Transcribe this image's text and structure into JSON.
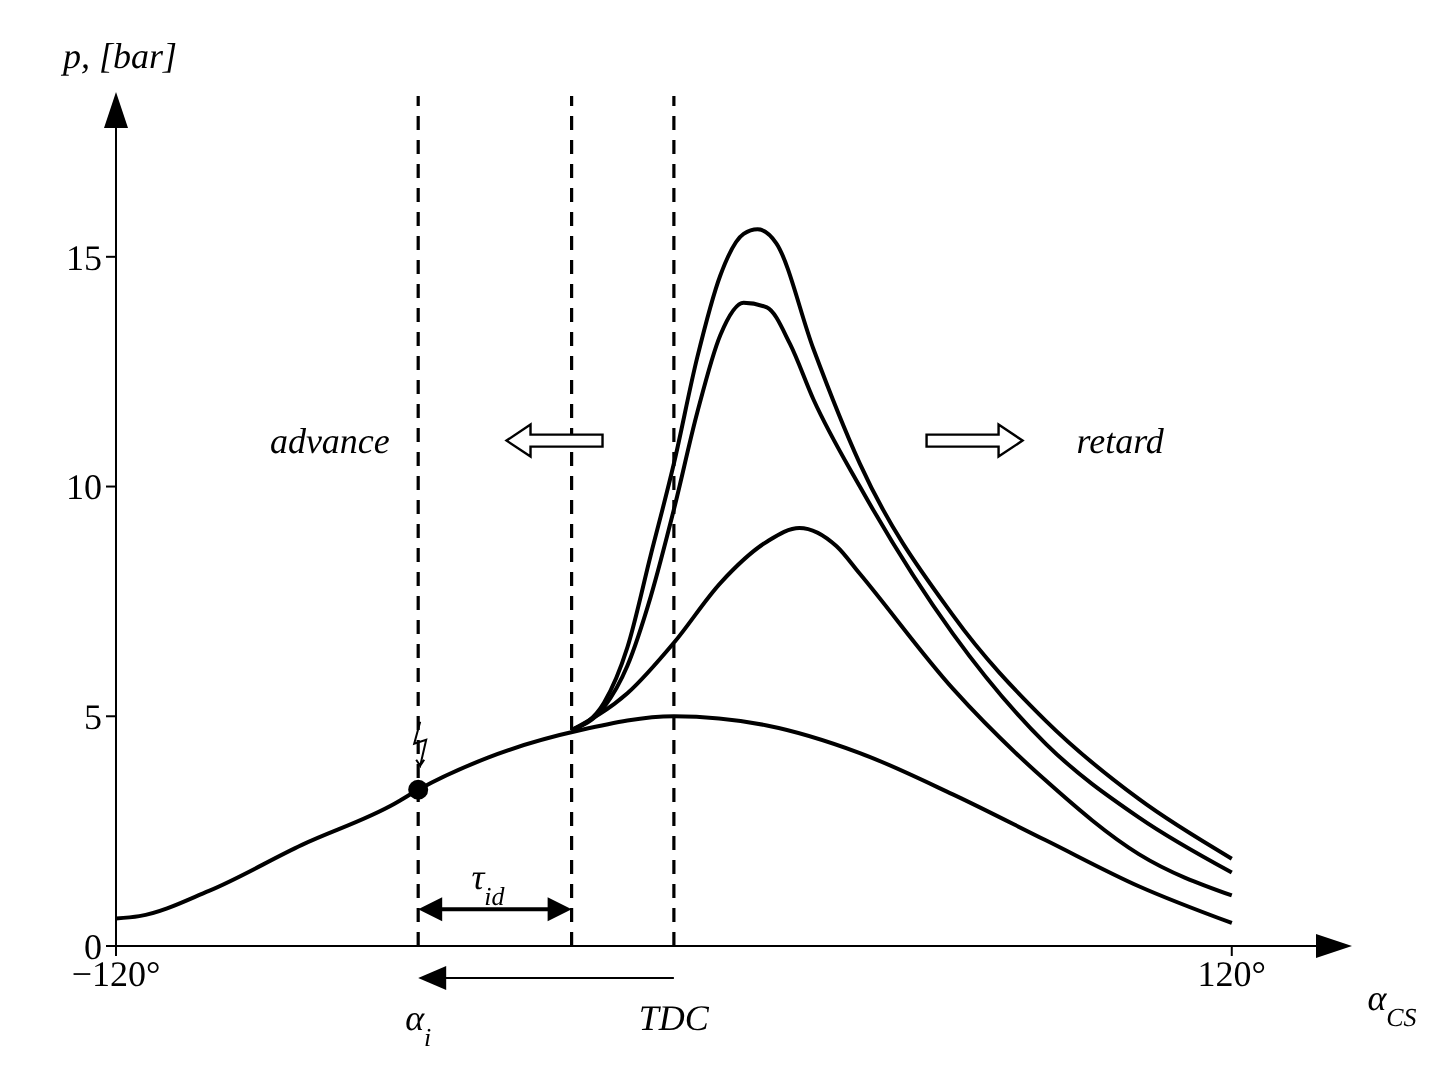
{
  "chart_data": {
    "type": "line",
    "xlabel": "α$_{CS}$",
    "ylabel": "p, [bar]",
    "xlim": [
      -120,
      145
    ],
    "ylim": [
      0,
      18.5
    ],
    "xticks": [
      {
        "value": -120,
        "label": "−120°"
      },
      {
        "value": 120,
        "label": "120°"
      }
    ],
    "yticks": [
      0,
      5,
      10,
      15
    ],
    "marker": "none",
    "line_style": "solid",
    "series": [
      {
        "color": "#000000",
        "x": [
          -120,
          -115,
          -100,
          -80,
          -60,
          -55,
          -40,
          -20,
          0,
          20,
          40,
          60,
          80,
          100,
          120
        ],
        "values": [
          0.6,
          0.65,
          1.2,
          2.2,
          3.1,
          3.4,
          4.1,
          4.7,
          5.0,
          4.8,
          4.2,
          3.3,
          2.3,
          1.3,
          0.5
        ]
      },
      {
        "color": "#000000",
        "x": [
          -22,
          -15,
          -10,
          -5,
          0,
          5,
          10,
          15,
          18,
          22,
          30,
          40,
          60,
          80,
          100,
          120
        ],
        "values": [
          4.7,
          5.3,
          6.5,
          8.5,
          10.5,
          12.8,
          14.6,
          15.5,
          15.6,
          15.3,
          13.0,
          10.5,
          7.2,
          4.9,
          3.2,
          1.9
        ]
      },
      {
        "color": "#000000",
        "x": [
          -22,
          -15,
          -10,
          -5,
          0,
          5,
          10,
          15,
          20,
          25,
          30,
          40,
          60,
          80,
          100,
          120
        ],
        "values": [
          4.7,
          5.2,
          6.1,
          7.6,
          9.5,
          11.6,
          13.3,
          14.0,
          13.9,
          13.1,
          11.9,
          10.0,
          6.8,
          4.4,
          2.8,
          1.6
        ]
      },
      {
        "color": "#000000",
        "x": [
          -22,
          -10,
          0,
          10,
          20,
          27,
          35,
          40,
          60,
          80,
          100,
          120
        ],
        "values": [
          4.7,
          5.5,
          6.6,
          7.9,
          8.8,
          9.1,
          8.7,
          8.1,
          5.6,
          3.6,
          2.0,
          1.1
        ]
      },
      {
        "type": "scatter",
        "marker": "circle",
        "color": "#000000",
        "x": [
          -55
        ],
        "values": [
          3.4
        ]
      }
    ],
    "ref_lines": [
      {
        "axis": "x",
        "value": -55,
        "label": "α$_{i}$",
        "line_style": "dashed",
        "color": "#000000"
      },
      {
        "axis": "x",
        "value": -22,
        "line_style": "dashed",
        "color": "#000000"
      },
      {
        "axis": "x",
        "value": 0,
        "label": "TDC",
        "line_style": "dashed",
        "color": "#000000"
      }
    ],
    "annotations": [
      "advance",
      "retard",
      "τ$_{id}$"
    ]
  }
}
